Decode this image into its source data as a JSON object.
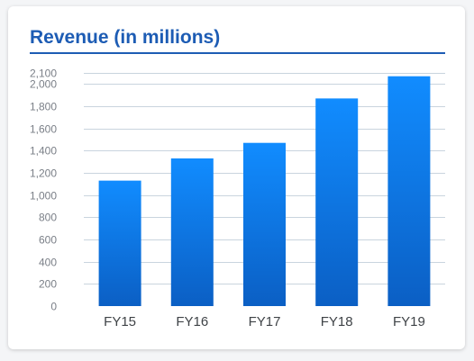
{
  "colors": {
    "accent": "#1d5cb4",
    "bar_top": "#118cff",
    "bar_bottom": "#0b5fc4",
    "grid": "#c9d4de"
  },
  "chart_data": {
    "type": "bar",
    "title": "Revenue (in millions)",
    "xlabel": "",
    "ylabel": "",
    "categories": [
      "FY15",
      "FY16",
      "FY17",
      "FY18",
      "FY19"
    ],
    "values": [
      1130,
      1330,
      1470,
      1870,
      2070
    ],
    "ylim": [
      0,
      2100
    ],
    "yticks": [
      0,
      200,
      400,
      600,
      800,
      1000,
      1200,
      1400,
      1600,
      1800,
      2000,
      2100
    ],
    "ytick_labels": [
      "0",
      "200",
      "400",
      "600",
      "800",
      "1,000",
      "1,200",
      "1,400",
      "1,600",
      "1,800",
      "2,000",
      "2,100"
    ],
    "grid": true,
    "legend": "none"
  }
}
